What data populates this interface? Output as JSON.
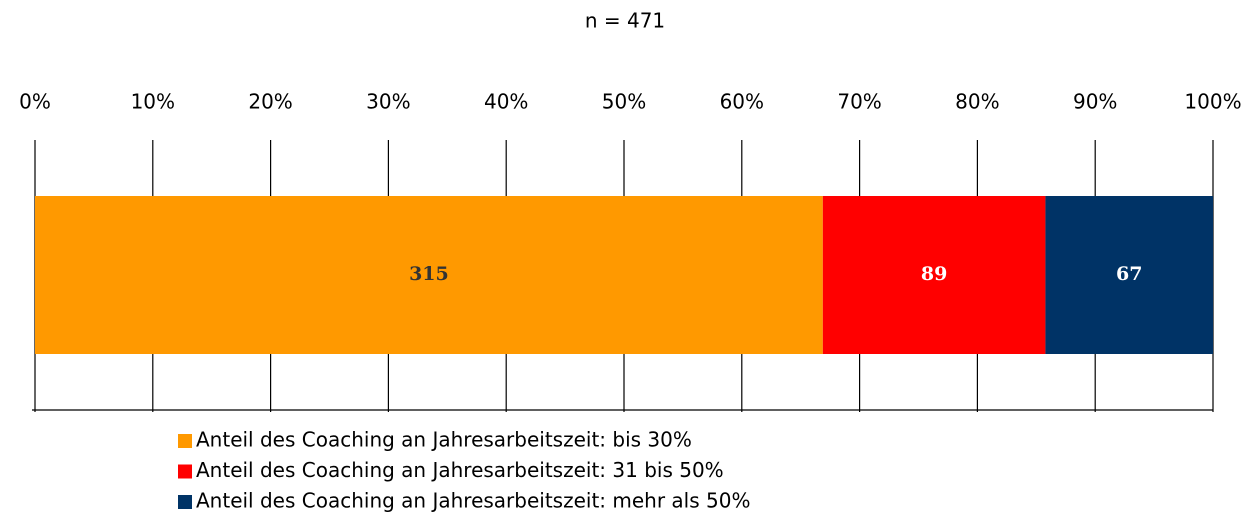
{
  "chart_data": {
    "type": "bar",
    "orientation": "horizontal",
    "stacked": "percent",
    "title": "n = 471",
    "series": [
      {
        "name": "Anteil des Coaching an Jahresarbeitszeit: bis 30%",
        "color": "#ff9900",
        "label_color": "#333333",
        "values": [
          315
        ]
      },
      {
        "name": "Anteil des Coaching an Jahresarbeitszeit: 31 bis 50%",
        "color": "#ff0000",
        "label_color": "#ffffff",
        "values": [
          89
        ]
      },
      {
        "name": "Anteil des Coaching an Jahresarbeitszeit: mehr als 50%",
        "color": "#003366",
        "label_color": "#ffffff",
        "values": [
          67
        ]
      }
    ],
    "xlim": [
      0,
      100
    ],
    "xticks": [
      {
        "value": 0,
        "label": "0%"
      },
      {
        "value": 10,
        "label": "10%"
      },
      {
        "value": 20,
        "label": "20%"
      },
      {
        "value": 30,
        "label": "30%"
      },
      {
        "value": 40,
        "label": "40%"
      },
      {
        "value": 50,
        "label": "50%"
      },
      {
        "value": 60,
        "label": "60%"
      },
      {
        "value": 70,
        "label": "70%"
      },
      {
        "value": 80,
        "label": "80%"
      },
      {
        "value": 90,
        "label": "90%"
      },
      {
        "value": 100,
        "label": "100%"
      }
    ],
    "grid": true,
    "legend": "bottom"
  }
}
